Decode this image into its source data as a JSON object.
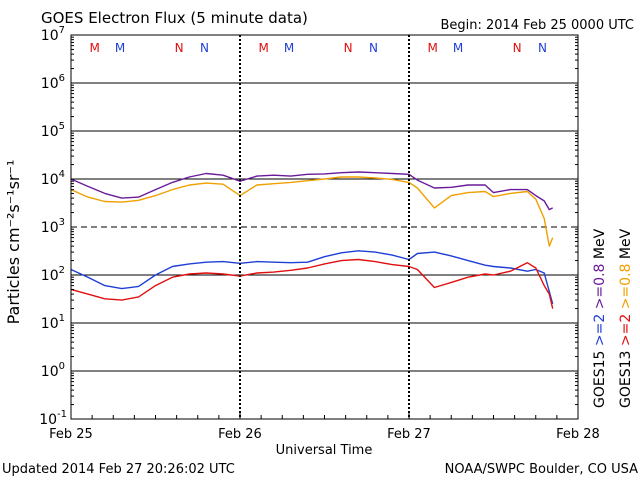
{
  "chart_data": {
    "type": "line",
    "title": "GOES Electron Flux (5 minute data)",
    "begin_label": "Begin: 2014 Feb 25 0000 UTC",
    "xlabel": "Universal Time",
    "ylabel": "Particles cm⁻²s⁻¹sr⁻¹",
    "y_scale": "log",
    "ylim_exponents": [
      -1,
      7
    ],
    "y_ticks": [
      {
        "base": "10",
        "exp": "7"
      },
      {
        "base": "10",
        "exp": "6"
      },
      {
        "base": "10",
        "exp": "5"
      },
      {
        "base": "10",
        "exp": "4"
      },
      {
        "base": "10",
        "exp": "3"
      },
      {
        "base": "10",
        "exp": "2"
      },
      {
        "base": "10",
        "exp": "1"
      },
      {
        "base": "10",
        "exp": "0"
      },
      {
        "base": "10",
        "exp": "-1"
      }
    ],
    "x_ticks": [
      "Feb 25",
      "Feb 26",
      "Feb 27",
      "Feb 28"
    ],
    "xlim_days": [
      0,
      3
    ],
    "threshold_level": 1000,
    "marker_letters": [
      {
        "day": 0.14,
        "letter": "M",
        "satellite": "GOES13"
      },
      {
        "day": 0.29,
        "letter": "M",
        "satellite": "GOES15"
      },
      {
        "day": 0.64,
        "letter": "N",
        "satellite": "GOES13"
      },
      {
        "day": 0.79,
        "letter": "N",
        "satellite": "GOES15"
      },
      {
        "day": 1.14,
        "letter": "M",
        "satellite": "GOES13"
      },
      {
        "day": 1.29,
        "letter": "M",
        "satellite": "GOES15"
      },
      {
        "day": 1.64,
        "letter": "N",
        "satellite": "GOES13"
      },
      {
        "day": 1.79,
        "letter": "N",
        "satellite": "GOES15"
      },
      {
        "day": 2.14,
        "letter": "M",
        "satellite": "GOES13"
      },
      {
        "day": 2.29,
        "letter": "M",
        "satellite": "GOES15"
      },
      {
        "day": 2.64,
        "letter": "N",
        "satellite": "GOES13"
      },
      {
        "day": 2.79,
        "letter": "N",
        "satellite": "GOES15"
      }
    ],
    "legend_right": {
      "col1": [
        {
          "text": "GOES15",
          "color": "#000000"
        },
        {
          "text": ">=2",
          "color": "#1f3fd6"
        },
        {
          "text": ">=0.8",
          "color": "#6a1b9a"
        },
        {
          "text": "MeV",
          "color": "#000000"
        }
      ],
      "col2": [
        {
          "text": "GOES13",
          "color": "#000000"
        },
        {
          "text": ">=2",
          "color": "#e01010"
        },
        {
          "text": ">=0.8",
          "color": "#f0a000"
        },
        {
          "text": "MeV",
          "color": "#000000"
        }
      ]
    },
    "colors": {
      "goes13": "#e01010",
      "goes15": "#1f3fd6",
      "g15_08": "#6a1b9a",
      "g13_08": "#f0a000"
    },
    "series": [
      {
        "key": "g15_08",
        "x": [
          0.0,
          0.1,
          0.2,
          0.3,
          0.4,
          0.5,
          0.6,
          0.7,
          0.8,
          0.9,
          1.0,
          1.1,
          1.2,
          1.3,
          1.4,
          1.5,
          1.6,
          1.7,
          1.8,
          1.9,
          2.0,
          2.05,
          2.15,
          2.25,
          2.35,
          2.45,
          2.5,
          2.6,
          2.7,
          2.75,
          2.8,
          2.83,
          2.85
        ],
        "y": [
          10000,
          7000,
          5000,
          4000,
          4200,
          6000,
          8500,
          11000,
          13000,
          12000,
          9000,
          11500,
          12000,
          11500,
          12500,
          12800,
          13500,
          14000,
          13500,
          13000,
          12500,
          9500,
          6500,
          6700,
          7500,
          7500,
          5200,
          6000,
          6000,
          4500,
          3500,
          2300,
          2500
        ]
      },
      {
        "key": "g13_08",
        "x": [
          0.0,
          0.1,
          0.2,
          0.3,
          0.4,
          0.5,
          0.6,
          0.7,
          0.8,
          0.9,
          1.0,
          1.1,
          1.2,
          1.3,
          1.4,
          1.5,
          1.6,
          1.7,
          1.8,
          1.9,
          2.0,
          2.05,
          2.15,
          2.25,
          2.35,
          2.45,
          2.5,
          2.6,
          2.7,
          2.75,
          2.8,
          2.83,
          2.85
        ],
        "y": [
          6000,
          4200,
          3400,
          3300,
          3600,
          4500,
          6000,
          7500,
          8200,
          7800,
          4500,
          7500,
          8000,
          8500,
          9200,
          10000,
          11000,
          11000,
          10500,
          9800,
          8500,
          6500,
          2500,
          4500,
          5200,
          5500,
          4300,
          5000,
          5500,
          3800,
          1500,
          400,
          600
        ]
      },
      {
        "key": "goes15",
        "x": [
          0.0,
          0.1,
          0.2,
          0.3,
          0.4,
          0.5,
          0.6,
          0.7,
          0.8,
          0.9,
          1.0,
          1.1,
          1.2,
          1.3,
          1.4,
          1.5,
          1.6,
          1.7,
          1.8,
          1.9,
          2.0,
          2.05,
          2.15,
          2.25,
          2.35,
          2.45,
          2.5,
          2.6,
          2.7,
          2.75,
          2.8,
          2.83,
          2.85
        ],
        "y": [
          130,
          90,
          60,
          52,
          58,
          100,
          150,
          170,
          185,
          190,
          175,
          190,
          185,
          180,
          185,
          240,
          290,
          320,
          300,
          260,
          210,
          280,
          300,
          250,
          200,
          160,
          150,
          140,
          120,
          130,
          110,
          45,
          25
        ]
      },
      {
        "key": "goes13",
        "x": [
          0.0,
          0.1,
          0.2,
          0.3,
          0.4,
          0.5,
          0.6,
          0.7,
          0.8,
          0.9,
          1.0,
          1.1,
          1.2,
          1.3,
          1.4,
          1.5,
          1.6,
          1.7,
          1.8,
          1.9,
          2.0,
          2.05,
          2.15,
          2.25,
          2.35,
          2.45,
          2.5,
          2.6,
          2.7,
          2.75,
          2.8,
          2.83,
          2.85
        ],
        "y": [
          50,
          40,
          32,
          30,
          35,
          60,
          90,
          105,
          110,
          105,
          95,
          110,
          115,
          125,
          140,
          170,
          200,
          210,
          190,
          165,
          150,
          130,
          55,
          70,
          90,
          105,
          100,
          120,
          180,
          140,
          60,
          40,
          20
        ]
      }
    ]
  },
  "footer": {
    "updated": "Updated 2014 Feb 27 20:26:02 UTC",
    "credit": "NOAA/SWPC Boulder, CO USA"
  }
}
